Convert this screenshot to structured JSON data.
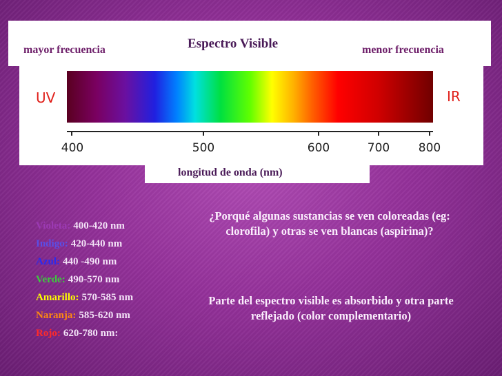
{
  "header": {
    "left": "mayor frecuencia",
    "title": "Espectro Visible",
    "right": "menor frecuencia"
  },
  "spectrum": {
    "uv": "UV",
    "ir": "IR",
    "ticks": [
      "400",
      "500",
      "600",
      "700",
      "800"
    ],
    "axis_label": "longitud de onda (nm)"
  },
  "colors": [
    {
      "name": "Violeta:",
      "range": "400-420 nm",
      "color": "#9c3ab4"
    },
    {
      "name": "Indigo:",
      "range": "420-440 nm",
      "color": "#5a4ee6"
    },
    {
      "name": "Azul:",
      "range": "440 -490 nm",
      "color": "#2a2af0"
    },
    {
      "name": "Verde:",
      "range": "490-570 nm",
      "color": "#3ccc3c"
    },
    {
      "name": "Amarillo:",
      "range": "570-585 nm",
      "color": "#ffff00"
    },
    {
      "name": "Naranja:",
      "range": "585-620 nm",
      "color": "#ff8a10"
    },
    {
      "name": "Rojo:",
      "range": "620-780 nm:",
      "color": "#ff2a2a"
    }
  ],
  "question": "¿Porqué algunas sustancias se ven coloreadas (eg: clorofila) y otras se ven blancas (aspirina)?",
  "answer": "Parte del espectro visible es absorbido y otra parte reflejado (color complementario)"
}
